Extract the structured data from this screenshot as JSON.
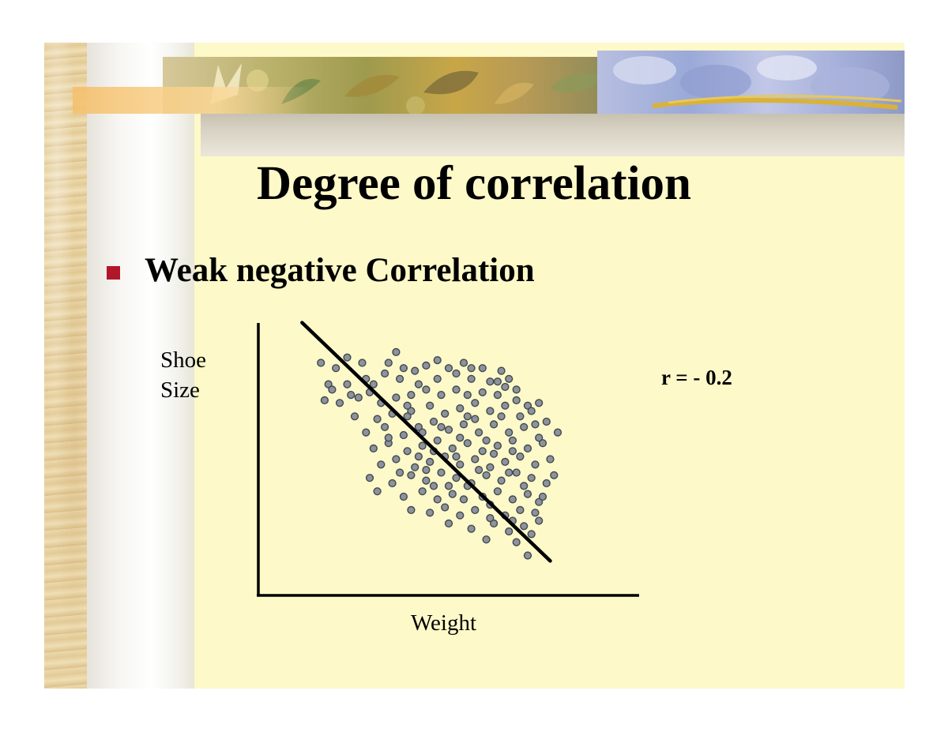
{
  "slide": {
    "title": "Degree of correlation",
    "bullet": "Weak negative Correlation",
    "bullet_color": "#b0182a"
  },
  "chart_data": {
    "type": "scatter",
    "ylabel_lines": [
      "Shoe",
      "Size"
    ],
    "xlabel": "Weight",
    "annotation": "r = - 0.2",
    "axes_ticks": false,
    "grid": false,
    "xlim": [
      0,
      100
    ],
    "ylim": [
      0,
      100
    ],
    "marker_color": "#8e939b",
    "marker_edge": "#3f4850",
    "trend_line": [
      [
        11,
        101
      ],
      [
        77,
        12
      ]
    ],
    "points": [
      [
        16,
        86
      ],
      [
        23,
        88
      ],
      [
        20,
        84
      ],
      [
        27,
        86
      ],
      [
        36,
        90
      ],
      [
        34,
        86
      ],
      [
        38,
        84
      ],
      [
        44,
        85
      ],
      [
        50,
        84
      ],
      [
        54,
        86
      ],
      [
        59,
        84
      ],
      [
        64,
        83
      ],
      [
        18,
        78
      ],
      [
        23,
        78
      ],
      [
        28,
        80
      ],
      [
        33,
        82
      ],
      [
        37,
        80
      ],
      [
        42,
        78
      ],
      [
        47,
        80
      ],
      [
        52,
        82
      ],
      [
        56,
        80
      ],
      [
        61,
        79
      ],
      [
        66,
        80
      ],
      [
        65,
        77
      ],
      [
        17,
        72
      ],
      [
        21,
        71
      ],
      [
        26,
        73
      ],
      [
        29,
        75
      ],
      [
        32,
        71
      ],
      [
        36,
        73
      ],
      [
        40,
        74
      ],
      [
        44,
        76
      ],
      [
        48,
        74
      ],
      [
        52,
        76
      ],
      [
        55,
        74
      ],
      [
        59,
        75
      ],
      [
        63,
        74
      ],
      [
        68,
        72
      ],
      [
        71,
        70
      ],
      [
        74,
        71
      ],
      [
        25,
        66
      ],
      [
        31,
        65
      ],
      [
        35,
        67
      ],
      [
        40,
        68
      ],
      [
        45,
        70
      ],
      [
        49,
        67
      ],
      [
        53,
        69
      ],
      [
        57,
        71
      ],
      [
        61,
        68
      ],
      [
        65,
        70
      ],
      [
        69,
        66
      ],
      [
        72,
        68
      ],
      [
        76,
        64
      ],
      [
        28,
        60
      ],
      [
        33,
        62
      ],
      [
        38,
        59
      ],
      [
        42,
        62
      ],
      [
        46,
        64
      ],
      [
        50,
        61
      ],
      [
        54,
        63
      ],
      [
        58,
        60
      ],
      [
        62,
        63
      ],
      [
        66,
        60
      ],
      [
        70,
        62
      ],
      [
        74,
        58
      ],
      [
        79,
        60
      ],
      [
        30,
        54
      ],
      [
        34,
        56
      ],
      [
        39,
        53
      ],
      [
        43,
        55
      ],
      [
        47,
        57
      ],
      [
        51,
        54
      ],
      [
        55,
        56
      ],
      [
        59,
        53
      ],
      [
        63,
        55
      ],
      [
        67,
        57
      ],
      [
        71,
        54
      ],
      [
        75,
        56
      ],
      [
        32,
        48
      ],
      [
        36,
        50
      ],
      [
        41,
        47
      ],
      [
        45,
        49
      ],
      [
        49,
        51
      ],
      [
        53,
        48
      ],
      [
        57,
        50
      ],
      [
        61,
        47
      ],
      [
        65,
        49
      ],
      [
        69,
        51
      ],
      [
        73,
        48
      ],
      [
        77,
        50
      ],
      [
        29,
        43
      ],
      [
        35,
        41
      ],
      [
        40,
        44
      ],
      [
        44,
        42
      ],
      [
        48,
        45
      ],
      [
        52,
        43
      ],
      [
        56,
        41
      ],
      [
        60,
        44
      ],
      [
        64,
        42
      ],
      [
        68,
        45
      ],
      [
        72,
        43
      ],
      [
        76,
        41
      ],
      [
        31,
        38
      ],
      [
        38,
        36
      ],
      [
        43,
        38
      ],
      [
        47,
        35
      ],
      [
        51,
        37
      ],
      [
        55,
        40
      ],
      [
        59,
        36
      ],
      [
        63,
        38
      ],
      [
        67,
        35
      ],
      [
        71,
        37
      ],
      [
        74,
        34
      ],
      [
        40,
        31
      ],
      [
        45,
        30
      ],
      [
        49,
        32
      ],
      [
        53,
        29
      ],
      [
        57,
        31
      ],
      [
        61,
        33
      ],
      [
        65,
        29
      ],
      [
        69,
        31
      ],
      [
        73,
        30
      ],
      [
        50,
        26
      ],
      [
        56,
        24
      ],
      [
        62,
        26
      ],
      [
        66,
        23
      ],
      [
        70,
        25
      ],
      [
        74,
        27
      ],
      [
        60,
        20
      ],
      [
        68,
        19
      ],
      [
        72,
        22
      ],
      [
        71,
        14
      ],
      [
        39,
        66
      ],
      [
        43,
        60
      ],
      [
        57,
        65
      ],
      [
        60,
        57
      ],
      [
        53,
        58
      ],
      [
        46,
        53
      ],
      [
        42,
        51
      ],
      [
        37,
        45
      ],
      [
        58,
        46
      ],
      [
        62,
        52
      ],
      [
        66,
        45
      ],
      [
        70,
        40
      ],
      [
        54,
        35
      ],
      [
        50,
        40
      ],
      [
        46,
        40
      ],
      [
        61,
        28
      ],
      [
        67,
        27
      ],
      [
        75,
        36
      ],
      [
        78,
        44
      ],
      [
        73,
        63
      ],
      [
        68,
        76
      ],
      [
        63,
        79
      ],
      [
        56,
        84
      ],
      [
        47,
        87
      ],
      [
        41,
        83
      ],
      [
        30,
        78
      ],
      [
        24,
        74
      ],
      [
        19,
        76
      ],
      [
        34,
        58
      ],
      [
        39,
        70
      ],
      [
        48,
        62
      ],
      [
        55,
        66
      ],
      [
        64,
        66
      ],
      [
        67,
        53
      ],
      [
        52,
        51
      ],
      [
        44,
        46
      ]
    ]
  }
}
